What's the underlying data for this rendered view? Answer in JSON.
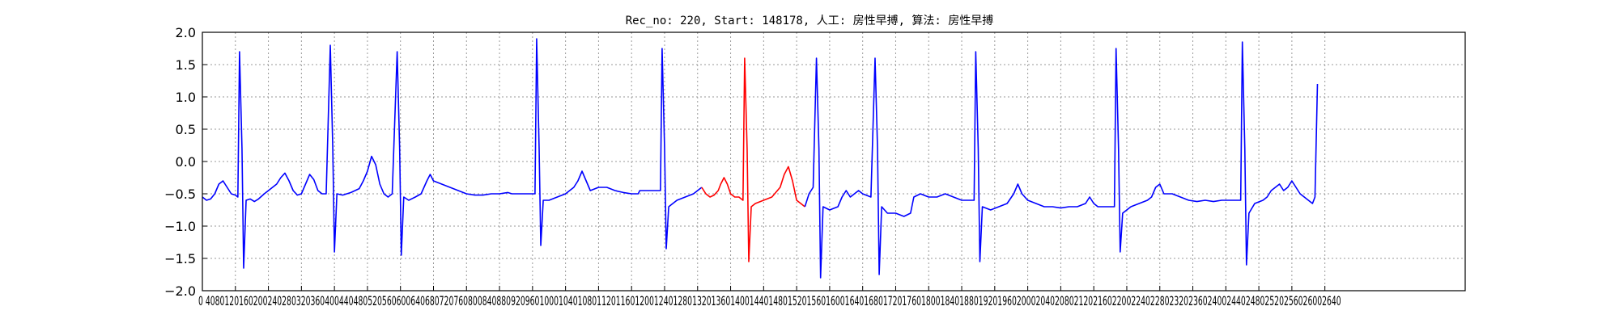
{
  "chart_data": {
    "type": "line",
    "title": "Rec_no: 220, Start: 148178, 人工: 房性早搏, 算法: 房性早搏",
    "xlabel": "",
    "ylabel": "",
    "xlim": [
      0,
      1530
    ],
    "ylim": [
      -2.0,
      2.0
    ],
    "grid": true,
    "yticks": [
      2.0,
      1.5,
      1.0,
      0.5,
      0.0,
      -0.5,
      -1.0,
      -1.5,
      -2.0
    ],
    "ytick_labels": [
      "2.0",
      "1.5",
      "1.0",
      "0.5",
      "0.0",
      "−0.5",
      "−1.0",
      "−1.5",
      "−2.0"
    ],
    "xtick_step": 40,
    "xticks_last": 1360,
    "xtick_labels_overlapping": "0 4080120160200240280320360400440480520560600640680720760800840880920960100010401080112011601200124012801320136014001440148015201560160016401680172017601800184018801920196020002040208021202160220022402280232023602400244024802520256026002640",
    "series": [
      {
        "color": "#0000ff",
        "points": [
          [
            0,
            -0.55
          ],
          [
            5,
            -0.6
          ],
          [
            10,
            -0.58
          ],
          [
            15,
            -0.5
          ],
          [
            20,
            -0.35
          ],
          [
            25,
            -0.3
          ],
          [
            30,
            -0.4
          ],
          [
            35,
            -0.5
          ],
          [
            40,
            -0.52
          ],
          [
            43,
            -0.55
          ],
          [
            45,
            1.7
          ],
          [
            48,
            0.2
          ],
          [
            50,
            -1.65
          ],
          [
            53,
            -0.6
          ],
          [
            58,
            -0.58
          ],
          [
            63,
            -0.62
          ],
          [
            68,
            -0.58
          ],
          [
            75,
            -0.5
          ],
          [
            80,
            -0.45
          ],
          [
            85,
            -0.4
          ],
          [
            90,
            -0.35
          ],
          [
            95,
            -0.25
          ],
          [
            100,
            -0.18
          ],
          [
            105,
            -0.3
          ],
          [
            110,
            -0.45
          ],
          [
            115,
            -0.52
          ],
          [
            120,
            -0.5
          ],
          [
            125,
            -0.35
          ],
          [
            130,
            -0.2
          ],
          [
            135,
            -0.28
          ],
          [
            140,
            -0.45
          ],
          [
            145,
            -0.5
          ],
          [
            150,
            -0.5
          ],
          [
            155,
            1.8
          ],
          [
            158,
            0.2
          ],
          [
            160,
            -1.4
          ],
          [
            163,
            -0.5
          ],
          [
            170,
            -0.52
          ],
          [
            180,
            -0.48
          ],
          [
            190,
            -0.42
          ],
          [
            195,
            -0.3
          ],
          [
            200,
            -0.15
          ],
          [
            205,
            0.08
          ],
          [
            210,
            -0.05
          ],
          [
            215,
            -0.35
          ],
          [
            220,
            -0.5
          ],
          [
            225,
            -0.55
          ],
          [
            230,
            -0.5
          ],
          [
            236,
            1.7
          ],
          [
            239,
            0.2
          ],
          [
            241,
            -1.45
          ],
          [
            244,
            -0.55
          ],
          [
            250,
            -0.6
          ],
          [
            258,
            -0.55
          ],
          [
            265,
            -0.5
          ],
          [
            272,
            -0.3
          ],
          [
            276,
            -0.2
          ],
          [
            280,
            -0.3
          ],
          [
            290,
            -0.35
          ],
          [
            300,
            -0.4
          ],
          [
            310,
            -0.45
          ],
          [
            320,
            -0.5
          ],
          [
            330,
            -0.52
          ],
          [
            340,
            -0.52
          ],
          [
            350,
            -0.5
          ],
          [
            360,
            -0.5
          ],
          [
            370,
            -0.48
          ],
          [
            375,
            -0.5
          ],
          [
            380,
            -0.5
          ],
          [
            403,
            -0.5
          ],
          [
            405,
            1.9
          ],
          [
            408,
            0.2
          ],
          [
            410,
            -1.3
          ],
          [
            413,
            -0.6
          ],
          [
            420,
            -0.6
          ],
          [
            430,
            -0.55
          ],
          [
            440,
            -0.5
          ],
          [
            450,
            -0.4
          ],
          [
            455,
            -0.3
          ],
          [
            460,
            -0.15
          ],
          [
            465,
            -0.3
          ],
          [
            470,
            -0.45
          ],
          [
            480,
            -0.4
          ],
          [
            490,
            -0.4
          ],
          [
            500,
            -0.45
          ],
          [
            510,
            -0.48
          ],
          [
            520,
            -0.5
          ],
          [
            528,
            -0.5
          ],
          [
            530,
            -0.45
          ],
          [
            555,
            -0.45
          ],
          [
            557,
            1.75
          ],
          [
            560,
            0.2
          ],
          [
            562,
            -1.35
          ],
          [
            565,
            -0.7
          ],
          [
            575,
            -0.6
          ],
          [
            585,
            -0.55
          ],
          [
            595,
            -0.5
          ],
          [
            600,
            -0.45
          ],
          [
            605,
            -0.4
          ]
        ]
      },
      {
        "color": "#ff0000",
        "points": [
          [
            605,
            -0.4
          ],
          [
            610,
            -0.5
          ],
          [
            615,
            -0.55
          ],
          [
            620,
            -0.52
          ],
          [
            625,
            -0.45
          ],
          [
            628,
            -0.35
          ],
          [
            632,
            -0.25
          ],
          [
            636,
            -0.35
          ],
          [
            640,
            -0.5
          ],
          [
            645,
            -0.55
          ],
          [
            650,
            -0.55
          ],
          [
            653,
            -0.58
          ],
          [
            655,
            -0.6
          ],
          [
            657,
            1.6
          ],
          [
            660,
            0.2
          ],
          [
            662,
            -1.55
          ],
          [
            665,
            -0.7
          ],
          [
            670,
            -0.65
          ],
          [
            680,
            -0.6
          ],
          [
            690,
            -0.55
          ],
          [
            700,
            -0.4
          ],
          [
            705,
            -0.2
          ],
          [
            710,
            -0.08
          ],
          [
            715,
            -0.3
          ],
          [
            720,
            -0.6
          ],
          [
            725,
            -0.65
          ],
          [
            730,
            -0.7
          ]
        ]
      },
      {
        "color": "#0000ff",
        "points": [
          [
            730,
            -0.7
          ],
          [
            735,
            -0.5
          ],
          [
            740,
            -0.4
          ],
          [
            744,
            1.6
          ],
          [
            747,
            0.2
          ],
          [
            749,
            -1.8
          ],
          [
            752,
            -0.7
          ],
          [
            760,
            -0.75
          ],
          [
            770,
            -0.7
          ],
          [
            775,
            -0.55
          ],
          [
            780,
            -0.45
          ],
          [
            785,
            -0.55
          ],
          [
            790,
            -0.5
          ],
          [
            795,
            -0.45
          ],
          [
            800,
            -0.5
          ],
          [
            810,
            -0.55
          ],
          [
            815,
            1.6
          ],
          [
            818,
            0.2
          ],
          [
            820,
            -1.75
          ],
          [
            823,
            -0.7
          ],
          [
            830,
            -0.8
          ],
          [
            840,
            -0.8
          ],
          [
            850,
            -0.85
          ],
          [
            858,
            -0.8
          ],
          [
            862,
            -0.55
          ],
          [
            870,
            -0.5
          ],
          [
            880,
            -0.55
          ],
          [
            890,
            -0.55
          ],
          [
            900,
            -0.5
          ],
          [
            910,
            -0.55
          ],
          [
            920,
            -0.6
          ],
          [
            935,
            -0.6
          ],
          [
            937,
            1.7
          ],
          [
            940,
            0.2
          ],
          [
            942,
            -1.55
          ],
          [
            945,
            -0.7
          ],
          [
            955,
            -0.75
          ],
          [
            965,
            -0.7
          ],
          [
            975,
            -0.65
          ],
          [
            983,
            -0.5
          ],
          [
            988,
            -0.35
          ],
          [
            993,
            -0.5
          ],
          [
            1000,
            -0.6
          ],
          [
            1010,
            -0.65
          ],
          [
            1020,
            -0.7
          ],
          [
            1030,
            -0.7
          ],
          [
            1040,
            -0.72
          ],
          [
            1050,
            -0.7
          ],
          [
            1060,
            -0.7
          ],
          [
            1070,
            -0.65
          ],
          [
            1075,
            -0.55
          ],
          [
            1080,
            -0.65
          ],
          [
            1085,
            -0.7
          ],
          [
            1105,
            -0.7
          ],
          [
            1107,
            1.75
          ],
          [
            1110,
            0.2
          ],
          [
            1112,
            -1.4
          ],
          [
            1115,
            -0.8
          ],
          [
            1125,
            -0.7
          ],
          [
            1135,
            -0.65
          ],
          [
            1145,
            -0.6
          ],
          [
            1150,
            -0.55
          ],
          [
            1155,
            -0.4
          ],
          [
            1160,
            -0.35
          ],
          [
            1165,
            -0.5
          ],
          [
            1175,
            -0.5
          ],
          [
            1185,
            -0.55
          ],
          [
            1195,
            -0.6
          ],
          [
            1205,
            -0.62
          ],
          [
            1215,
            -0.6
          ],
          [
            1225,
            -0.62
          ],
          [
            1235,
            -0.6
          ],
          [
            1240,
            -0.6
          ],
          [
            1258,
            -0.6
          ],
          [
            1260,
            1.85
          ],
          [
            1263,
            0.2
          ],
          [
            1265,
            -1.6
          ],
          [
            1268,
            -0.8
          ],
          [
            1275,
            -0.65
          ],
          [
            1285,
            -0.6
          ],
          [
            1290,
            -0.55
          ],
          [
            1295,
            -0.45
          ],
          [
            1300,
            -0.4
          ],
          [
            1305,
            -0.35
          ],
          [
            1310,
            -0.45
          ],
          [
            1315,
            -0.4
          ],
          [
            1320,
            -0.3
          ],
          [
            1325,
            -0.4
          ],
          [
            1330,
            -0.5
          ],
          [
            1335,
            -0.55
          ],
          [
            1340,
            -0.6
          ],
          [
            1345,
            -0.65
          ],
          [
            1348,
            -0.55
          ],
          [
            1351,
            1.2
          ]
        ]
      }
    ]
  }
}
